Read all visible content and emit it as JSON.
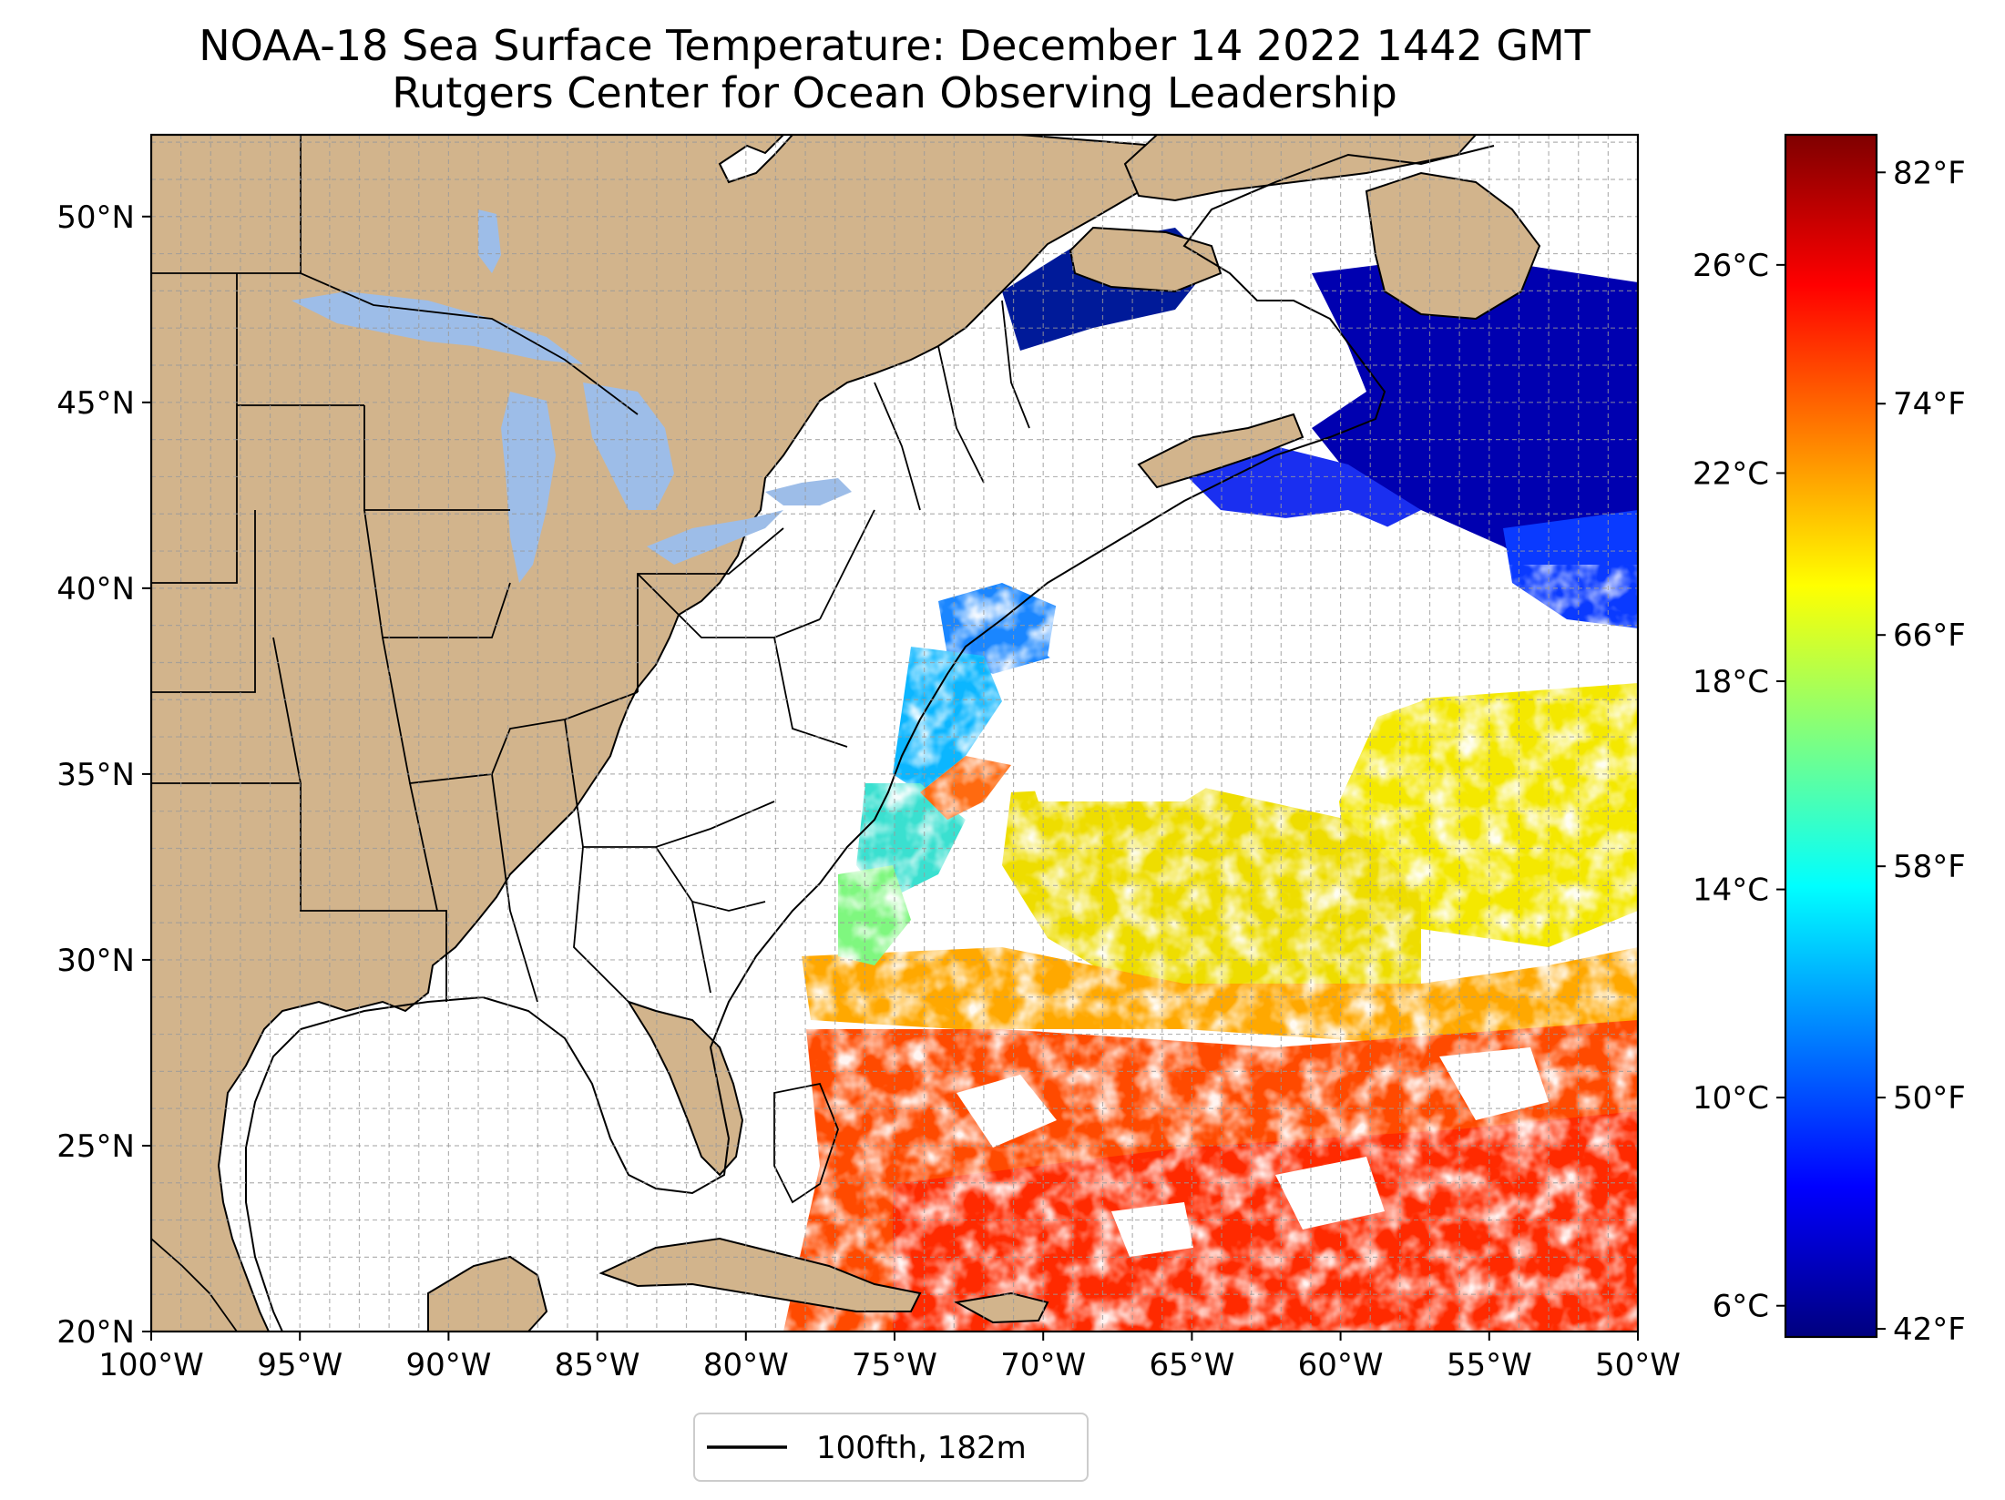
{
  "title": {
    "line1": "NOAA-18 Sea Surface Temperature: December 14 2022 1442 GMT",
    "line2": "Rutgers Center for Ocean Observing Leadership"
  },
  "map": {
    "lon_range": [
      -100,
      -50
    ],
    "lat_range": [
      20,
      52.2
    ],
    "lon_ticks": [
      "100°W",
      "95°W",
      "90°W",
      "85°W",
      "80°W",
      "75°W",
      "70°W",
      "65°W",
      "60°W",
      "55°W",
      "50°W"
    ],
    "lat_ticks": [
      "20°N",
      "25°N",
      "30°N",
      "35°N",
      "40°N",
      "45°N",
      "50°N"
    ],
    "grid": "dashed, 1 degree",
    "colors": {
      "land": "#d2b48c",
      "lakes": "#9dbde8",
      "no_data": "#ffffff",
      "coastline": "#000000"
    }
  },
  "colorbar": {
    "colormap": "jet",
    "celsius_range": [
      5.4,
      28.5
    ],
    "celsius_labels": [
      "6°C",
      "10°C",
      "14°C",
      "18°C",
      "22°C",
      "26°C"
    ],
    "fahrenheit_labels": [
      "42°F",
      "50°F",
      "58°F",
      "66°F",
      "74°F",
      "82°F"
    ],
    "jet_stops": [
      "#00007f",
      "#0000ff",
      "#007fff",
      "#00ffff",
      "#7fff7f",
      "#ffff00",
      "#ff7f00",
      "#ff0000",
      "#7f0000"
    ]
  },
  "legend": {
    "label": "100fth, 182m"
  }
}
